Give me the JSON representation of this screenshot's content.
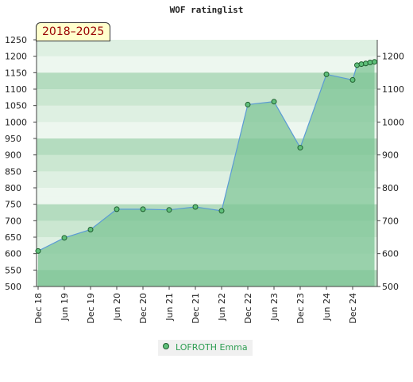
{
  "title": "WOF ratinglist",
  "badge": "2018–2025",
  "legend": {
    "label": "LOFROTH Emma"
  },
  "colors": {
    "line": "#5b9bd5",
    "area": "#7cc494",
    "marker": "#5fbf7a",
    "legend_text": "#2e9e52"
  },
  "chart_data": {
    "type": "area",
    "title": "WOF ratinglist",
    "xlabel": "",
    "ylabel": "",
    "ylim": [
      500,
      1250
    ],
    "y_ticks_left": [
      500,
      550,
      600,
      650,
      700,
      750,
      800,
      850,
      900,
      950,
      1000,
      1050,
      1100,
      1150,
      1200,
      1250
    ],
    "y_ticks_right": [
      500,
      600,
      700,
      800,
      900,
      1000,
      1100,
      1200
    ],
    "x_ticks": [
      "Dec 18",
      "Jun 19",
      "Dec 19",
      "Jun 20",
      "Dec 20",
      "Jun 21",
      "Dec 21",
      "Jun 22",
      "Dec 22",
      "Jun 23",
      "Dec 23",
      "Jun 24",
      "Dec 24"
    ],
    "grid": true,
    "legend_position": "bottom",
    "series": [
      {
        "name": "LOFROTH Emma",
        "x": [
          "Dec 18",
          "Jun 19",
          "Dec 19",
          "Jun 20",
          "Dec 20",
          "Jun 21",
          "Dec 21",
          "Jun 22",
          "Dec 22",
          "Jun 23",
          "Dec 23",
          "Jun 24",
          "Dec 24",
          "Jan 25",
          "Feb 25",
          "Mar 25",
          "Apr 25",
          "May 25"
        ],
        "values": [
          608,
          648,
          673,
          735,
          735,
          733,
          742,
          730,
          1053,
          1062,
          922,
          1145,
          1128,
          1173,
          1176,
          1178,
          1181,
          1183
        ]
      }
    ]
  }
}
